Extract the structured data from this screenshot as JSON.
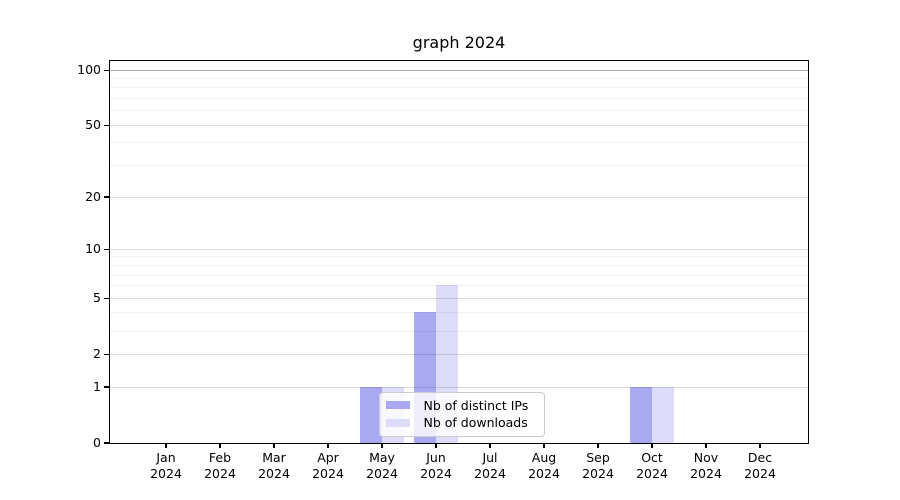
{
  "chart_data": {
    "type": "bar",
    "title": "graph 2024",
    "categories": [
      "Jan",
      "Feb",
      "Mar",
      "Apr",
      "May",
      "Jun",
      "Jul",
      "Aug",
      "Sep",
      "Oct",
      "Nov",
      "Dec"
    ],
    "x_tick_year": "2024",
    "series": [
      {
        "name": "Nb of distinct IPs",
        "color": "#a9a9f1",
        "values": [
          0,
          0,
          0,
          0,
          1,
          4,
          0,
          0,
          0,
          1,
          0,
          0
        ]
      },
      {
        "name": "Nb of downloads",
        "color": "#dcdcf8",
        "values": [
          0,
          0,
          0,
          0,
          1,
          6,
          0,
          0,
          0,
          1,
          0,
          0
        ]
      }
    ],
    "y_scale": "log1p",
    "ylim": [
      0,
      112
    ],
    "y_major_ticks": [
      0,
      1,
      2,
      5,
      10,
      20,
      50,
      100
    ],
    "y_minor_gridlines": [
      3,
      4,
      6,
      7,
      8,
      9,
      30,
      40,
      60,
      70,
      80,
      90
    ],
    "grid": true,
    "legend_position": "inside-bottom-center"
  }
}
